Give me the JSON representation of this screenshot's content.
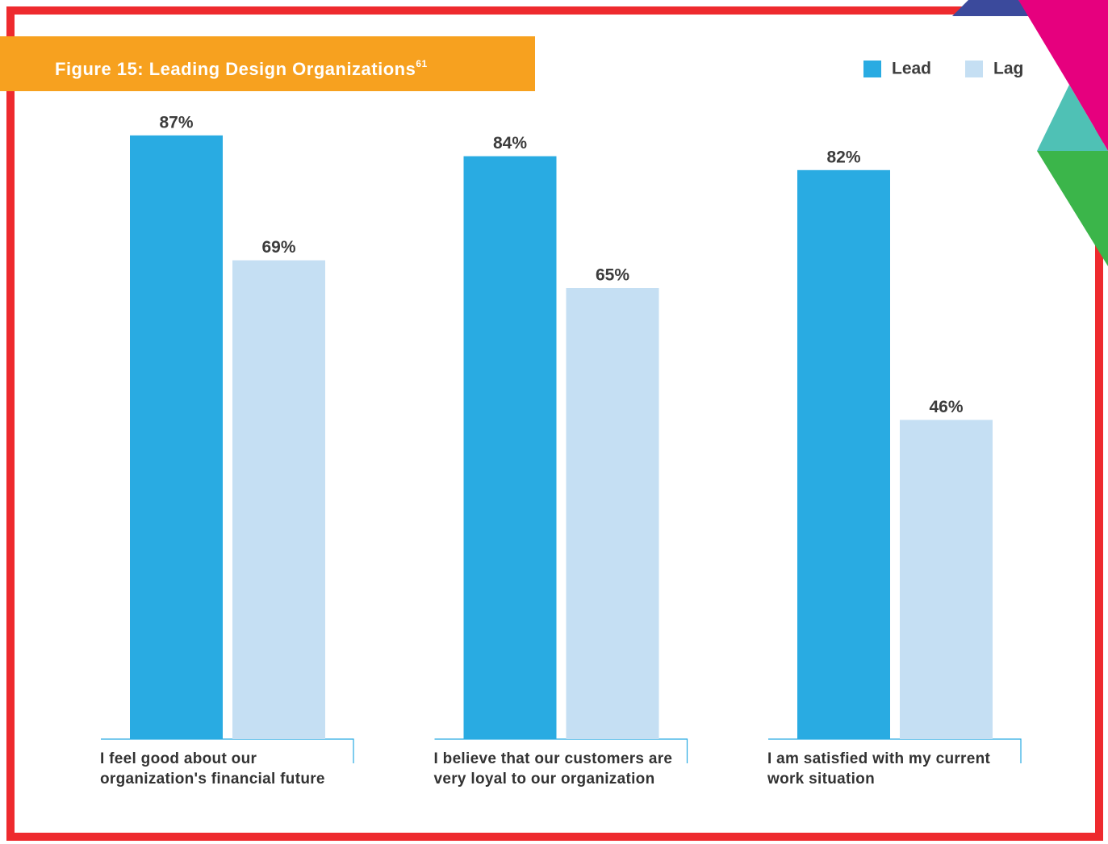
{
  "chart_data": {
    "type": "bar",
    "title": "Figure 15: Leading Design Organizations",
    "title_footnote": "61",
    "categories": [
      "I feel good about our organization's financial future",
      "I believe that our customers are very loyal to our organization",
      "I am satisfied with my current work situation"
    ],
    "series": [
      {
        "name": "Lead",
        "color": "#29abe2",
        "values": [
          87,
          84,
          82
        ],
        "value_labels": [
          "87%",
          "84%",
          "82%"
        ]
      },
      {
        "name": "Lag",
        "color": "#c5dff3",
        "values": [
          69,
          65,
          46
        ],
        "value_labels": [
          "69%",
          "65%",
          "46%"
        ]
      }
    ],
    "ylim": [
      0,
      100
    ],
    "legend": "top-right"
  }
}
